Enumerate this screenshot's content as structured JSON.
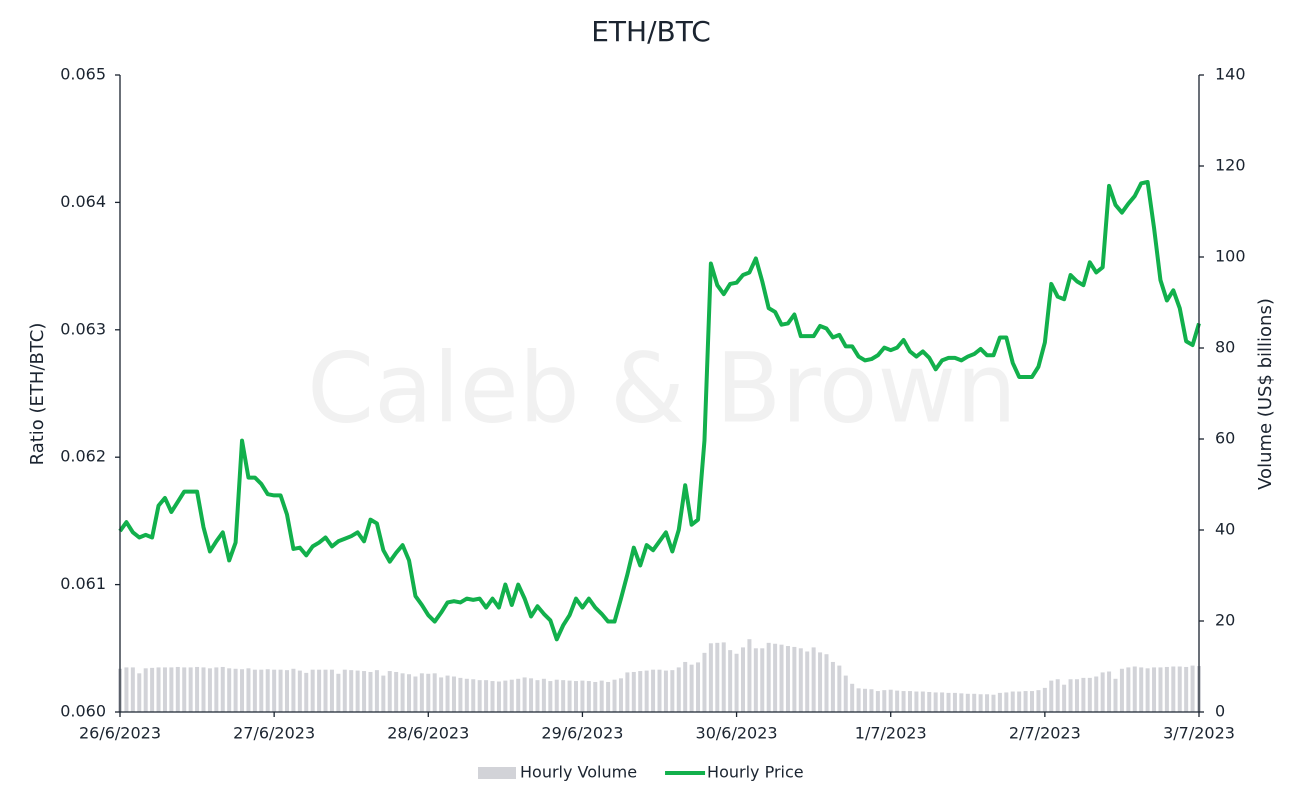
{
  "chart_data": {
    "type": "combo",
    "title": "ETH/BTC",
    "watermark": "Caleb & Brown",
    "ylabel": "Ratio (ETH/BTC)",
    "y2label": "Volume (US$ billions)",
    "categories": [
      "26/6/2023",
      null,
      null,
      null,
      null,
      null,
      null,
      null,
      null,
      null,
      null,
      null,
      null,
      null,
      null,
      null,
      null,
      null,
      null,
      null,
      null,
      null,
      null,
      null,
      "27/6/2023",
      null,
      null,
      null,
      null,
      null,
      null,
      null,
      null,
      null,
      null,
      null,
      null,
      null,
      null,
      null,
      null,
      null,
      null,
      null,
      null,
      null,
      null,
      null,
      "28/6/2023",
      null,
      null,
      null,
      null,
      null,
      null,
      null,
      null,
      null,
      null,
      null,
      null,
      null,
      null,
      null,
      null,
      null,
      null,
      null,
      null,
      null,
      null,
      null,
      "29/6/2023",
      null,
      null,
      null,
      null,
      null,
      null,
      null,
      null,
      null,
      null,
      null,
      null,
      null,
      null,
      null,
      null,
      null,
      null,
      null,
      null,
      null,
      null,
      null,
      "30/6/2023",
      null,
      null,
      null,
      null,
      null,
      null,
      null,
      null,
      null,
      null,
      null,
      null,
      null,
      null,
      null,
      null,
      null,
      null,
      null,
      null,
      null,
      null,
      null,
      "1/7/2023",
      null,
      null,
      null,
      null,
      null,
      null,
      null,
      null,
      null,
      null,
      null,
      null,
      null,
      null,
      null,
      null,
      null,
      null,
      null,
      null,
      null,
      null,
      null,
      "2/7/2023",
      null,
      null,
      null,
      null,
      null,
      null,
      null,
      null,
      null,
      null,
      null,
      null,
      null,
      null,
      null,
      null,
      null,
      null,
      null,
      null,
      null,
      null,
      null,
      "3/7/2023"
    ],
    "series": [
      {
        "name": "Hourly Volume",
        "type": "bar",
        "axis": "y2",
        "color": "#d2d3d8",
        "values": [
          9.5,
          9.8,
          9.8,
          8.5,
          9.6,
          9.7,
          9.8,
          9.8,
          9.8,
          9.9,
          9.8,
          9.8,
          9.9,
          9.8,
          9.6,
          9.8,
          9.9,
          9.6,
          9.5,
          9.4,
          9.6,
          9.3,
          9.3,
          9.4,
          9.3,
          9.3,
          9.2,
          9.5,
          9.1,
          8.6,
          9.3,
          9.3,
          9.3,
          9.3,
          8.4,
          9.3,
          9.2,
          9.1,
          9.0,
          8.8,
          9.2,
          8.0,
          9.0,
          8.8,
          8.5,
          8.3,
          7.8,
          8.5,
          8.4,
          8.5,
          7.6,
          8.0,
          7.8,
          7.5,
          7.3,
          7.2,
          7.0,
          7.0,
          6.8,
          6.7,
          6.9,
          7.1,
          7.3,
          7.6,
          7.4,
          7.0,
          7.3,
          6.8,
          7.1,
          7.0,
          6.9,
          6.8,
          6.9,
          6.8,
          6.6,
          6.9,
          6.6,
          7.1,
          7.4,
          8.7,
          8.8,
          9.0,
          9.1,
          9.3,
          9.3,
          9.1,
          9.2,
          9.8,
          11.0,
          10.4,
          10.9,
          13.0,
          15.1,
          15.2,
          15.3,
          13.6,
          12.8,
          14.2,
          16.0,
          14.0,
          14.0,
          15.2,
          15.0,
          14.8,
          14.5,
          14.3,
          14.0,
          13.3,
          14.2,
          13.1,
          12.7,
          11.0,
          10.2,
          8.0,
          6.2,
          5.2,
          5.1,
          5.0,
          4.6,
          4.8,
          4.9,
          4.7,
          4.6,
          4.6,
          4.5,
          4.5,
          4.4,
          4.3,
          4.3,
          4.2,
          4.2,
          4.1,
          4.0,
          4.0,
          3.9,
          3.9,
          3.8,
          4.2,
          4.3,
          4.5,
          4.5,
          4.6,
          4.6,
          4.8,
          5.3,
          6.9,
          7.2,
          6.0,
          7.2,
          7.2,
          7.5,
          7.5,
          7.8,
          8.7,
          8.9,
          7.3,
          9.5,
          9.8,
          10.0,
          9.8,
          9.6,
          9.8,
          9.8,
          9.9,
          10.0,
          10.0,
          9.9,
          10.2,
          10.1
        ]
      },
      {
        "name": "Hourly Price",
        "type": "line",
        "color": "#12b04c",
        "values": [
          0.06142,
          0.06149,
          0.06141,
          0.06137,
          0.06139,
          0.06137,
          0.06162,
          0.06168,
          0.06157,
          0.06165,
          0.06173,
          0.06173,
          0.06173,
          0.06145,
          0.06126,
          0.06134,
          0.06141,
          0.06119,
          0.06133,
          0.06213,
          0.06184,
          0.06184,
          0.06179,
          0.06171,
          0.0617,
          0.0617,
          0.06155,
          0.06128,
          0.06129,
          0.06123,
          0.0613,
          0.06133,
          0.06137,
          0.0613,
          0.06134,
          0.06136,
          0.06138,
          0.06141,
          0.06134,
          0.06151,
          0.06148,
          0.06127,
          0.06118,
          0.06125,
          0.06131,
          0.06119,
          0.06091,
          0.06084,
          0.06076,
          0.06071,
          0.06078,
          0.06086,
          0.06087,
          0.06086,
          0.06089,
          0.06088,
          0.06089,
          0.06082,
          0.06089,
          0.06082,
          0.061,
          0.06084,
          0.061,
          0.06089,
          0.06075,
          0.06083,
          0.06077,
          0.06072,
          0.06057,
          0.06068,
          0.06076,
          0.06089,
          0.06082,
          0.06089,
          0.06082,
          0.06077,
          0.06071,
          0.06071,
          0.06089,
          0.06108,
          0.06129,
          0.06115,
          0.06131,
          0.06127,
          0.06134,
          0.06141,
          0.06126,
          0.06143,
          0.06178,
          0.06147,
          0.06151,
          0.06213,
          0.06352,
          0.06335,
          0.06328,
          0.06336,
          0.06337,
          0.06343,
          0.06345,
          0.06356,
          0.06338,
          0.06317,
          0.06314,
          0.06304,
          0.06305,
          0.06312,
          0.06295,
          0.06295,
          0.06295,
          0.06303,
          0.06301,
          0.06294,
          0.06296,
          0.06287,
          0.06287,
          0.06279,
          0.06276,
          0.06277,
          0.0628,
          0.06286,
          0.06284,
          0.06286,
          0.06292,
          0.06283,
          0.06279,
          0.06283,
          0.06278,
          0.06269,
          0.06276,
          0.06278,
          0.06278,
          0.06276,
          0.06279,
          0.06281,
          0.06285,
          0.0628,
          0.0628,
          0.06294,
          0.06294,
          0.06274,
          0.06263,
          0.06263,
          0.06263,
          0.06271,
          0.0629,
          0.06336,
          0.06326,
          0.06324,
          0.06343,
          0.06338,
          0.06335,
          0.06353,
          0.06345,
          0.06349,
          0.06413,
          0.06398,
          0.06392,
          0.06399,
          0.06405,
          0.06415,
          0.06416,
          0.0638,
          0.06339,
          0.06323,
          0.06331,
          0.06317,
          0.06291,
          0.06288,
          0.06305
        ]
      }
    ],
    "ylim": [
      0.06,
      0.065
    ],
    "yticks": [
      {
        "value": 0.06,
        "label": "0.060"
      },
      0.061,
      0.062,
      0.063,
      0.064,
      0.065
    ],
    "y2lim": [
      0,
      140
    ],
    "y2ticks": [
      0,
      20,
      40,
      60,
      80,
      100,
      120,
      140
    ],
    "grid": false,
    "legend": "bottom"
  }
}
